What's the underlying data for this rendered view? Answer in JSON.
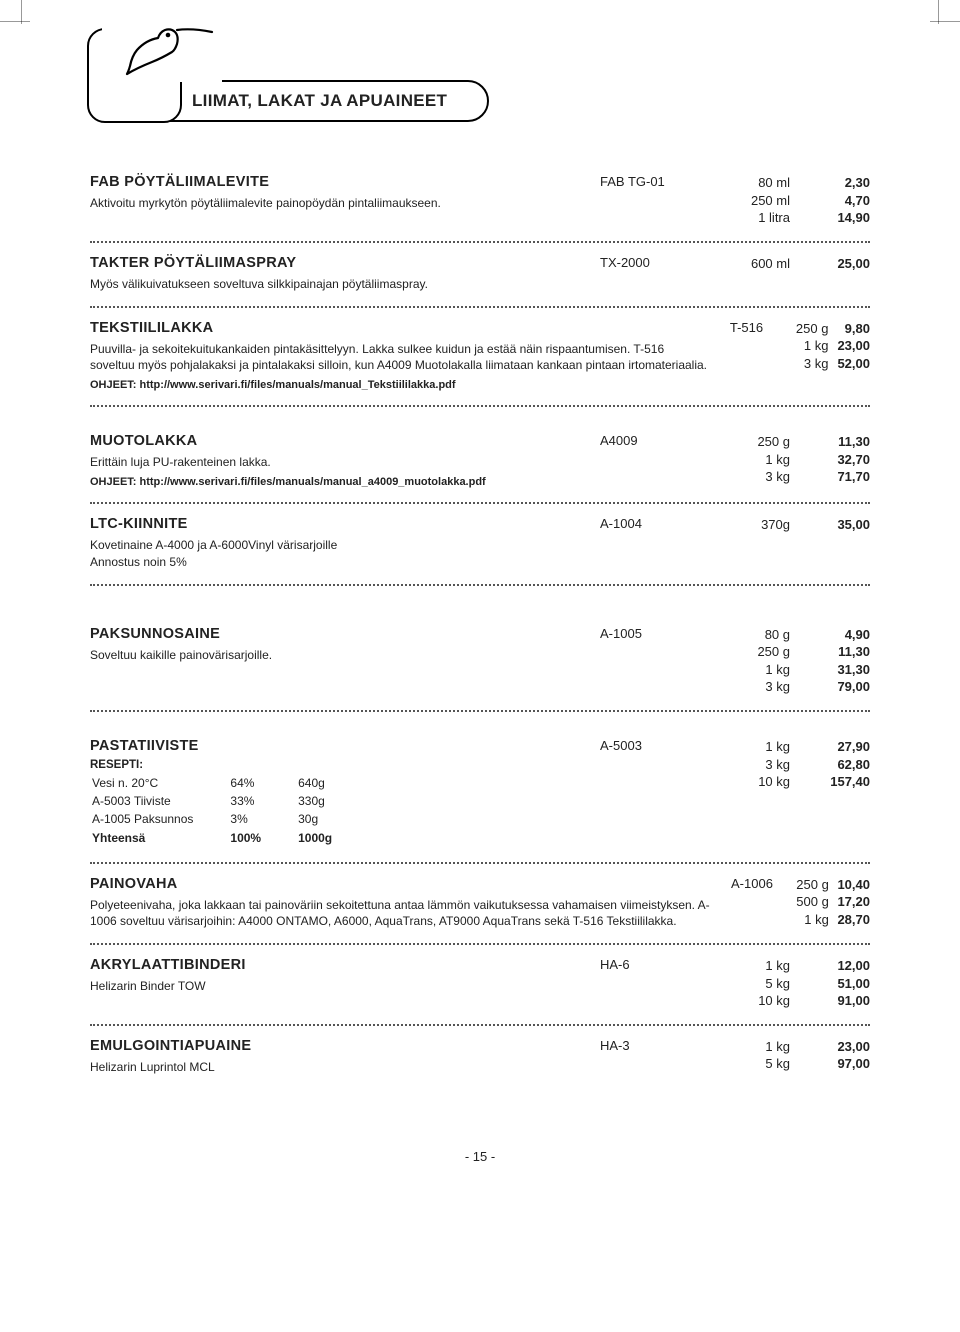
{
  "section_title": "LIIMAT, LAKAT JA APUAINEET",
  "page_number": "- 15 -",
  "products": [
    {
      "title": "FAB PÖYTÄLIIMALEVITE",
      "desc": "Aktivoitu myrkytön pöytäliimalevite painopöydän pintaliimaukseen.",
      "code": "FAB TG-01",
      "sizes": [
        "80 ml",
        "250 ml",
        "1 litra"
      ],
      "prices": [
        "2,30",
        "4,70",
        "14,90"
      ]
    },
    {
      "title": "TAKTER PÖYTÄLIIMASPRAY",
      "desc": "Myös välikuivatukseen soveltuva silkkipainajan pöytäliimaspray.",
      "code": "TX-2000",
      "sizes": [
        "600 ml"
      ],
      "prices": [
        "25,00"
      ]
    },
    {
      "title": "TEKSTIILILAKKA",
      "desc": "Puuvilla- ja sekoitekuitukankaiden pintakäsittelyyn. Lakka sulkee kuidun ja estää näin rispaantumisen. T-516 soveltuu myös pohjalakaksi ja pintalakaksi silloin, kun A4009 Muotolakalla liimataan kankaan pintaan irtomateriaalia.",
      "ohjeet": "OHJEET: http://www.serivari.fi/files/manuals/manual_Tekstiililakka.pdf",
      "code": "T-516",
      "sizes": [
        "250 g",
        "1 kg",
        "3 kg"
      ],
      "prices": [
        "9,80",
        "23,00",
        "52,00"
      ]
    },
    {
      "title": "MUOTOLAKKA",
      "desc": "Erittäin luja PU-rakenteinen lakka.",
      "ohjeet": "OHJEET: http://www.serivari.fi/files/manuals/manual_a4009_muotolakka.pdf",
      "code": "A4009",
      "sizes": [
        "250 g",
        "1 kg",
        "3 kg"
      ],
      "prices": [
        "11,30",
        "32,70",
        "71,70"
      ],
      "gap_before": true
    },
    {
      "title": "LTC-KIINNITE",
      "desc": "Kovetinaine A-4000 ja A-6000Vinyl värisarjoille\nAnnostus noin 5%",
      "code": "A-1004",
      "sizes": [
        "370g"
      ],
      "prices": [
        "35,00"
      ],
      "gap_after": true
    },
    {
      "title": "PAKSUNNOSAINE",
      "desc": "Soveltuu kaikille painovärisarjoille.",
      "code": "A-1005",
      "sizes": [
        "80 g",
        "250 g",
        "1 kg",
        "3 kg"
      ],
      "prices": [
        "4,90",
        "11,30",
        "31,30",
        "79,00"
      ],
      "gap_before": true
    },
    {
      "title": "PASTATIIVISTE",
      "recipe_label": "RESEPTI:",
      "recipe_rows": [
        [
          "Vesi n. 20°C",
          "64%",
          "640g"
        ],
        [
          "A-5003 Tiiviste",
          "33%",
          "330g"
        ],
        [
          "A-1005 Paksunnos",
          "3%",
          "30g"
        ],
        [
          "Yhteensä",
          "100%",
          "1000g"
        ]
      ],
      "code": "A-5003",
      "sizes": [
        "1 kg",
        "3 kg",
        "10 kg"
      ],
      "prices": [
        "27,90",
        "62,80",
        "157,40"
      ],
      "gap_before": true
    },
    {
      "title": "PAINOVAHA",
      "desc": "Polyeteenivaha, joka lakkaan tai painoväriin sekoitettuna antaa lämmön vaikutuksessa vahamaisen viimeistyksen. A-1006 soveltuu värisarjoihin: A4000 ONTAMO, A6000, AquaTrans, AT9000 AquaTrans sekä T-516 Tekstiililakka.",
      "code": "A-1006",
      "sizes": [
        "250 g",
        "500 g",
        "1 kg"
      ],
      "prices": [
        "10,40",
        "17,20",
        "28,70"
      ]
    },
    {
      "title": "AKRYLAATTIBINDERI",
      "desc": "Helizarin Binder TOW",
      "code": "HA-6",
      "sizes": [
        "1 kg",
        "5 kg",
        "10 kg"
      ],
      "prices": [
        "12,00",
        "51,00",
        "91,00"
      ]
    },
    {
      "title": "EMULGOINTIAPUAINE",
      "desc": "Helizarin Luprintol MCL",
      "code": "HA-3",
      "sizes": [
        "1 kg",
        "5 kg"
      ],
      "prices": [
        "23,00",
        "97,00"
      ]
    }
  ]
}
